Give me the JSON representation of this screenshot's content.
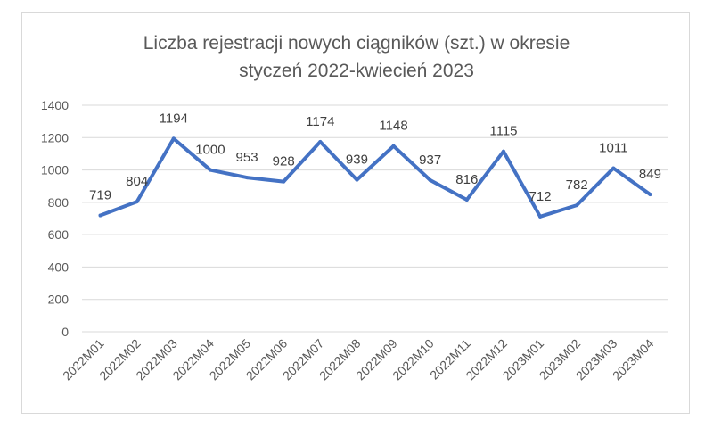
{
  "chart_data": {
    "type": "line",
    "title_lines": [
      "Liczba rejestracji nowych ciągników (szt.) w okresie",
      "styczeń 2022-kwiecień 2023"
    ],
    "categories": [
      "2022M01",
      "2022M02",
      "2022M03",
      "2022M04",
      "2022M05",
      "2022M06",
      "2022M07",
      "2022M08",
      "2022M09",
      "2022M10",
      "2022M11",
      "2022M12",
      "2023M01",
      "2023M02",
      "2023M03",
      "2023M04"
    ],
    "values": [
      719,
      804,
      1194,
      1000,
      953,
      928,
      1174,
      939,
      1148,
      937,
      816,
      1115,
      712,
      782,
      1011,
      849
    ],
    "yticks": [
      "0",
      "200",
      "400",
      "600",
      "800",
      "1000",
      "1200",
      "1400"
    ],
    "ylim": [
      0,
      1400
    ],
    "grid": true,
    "legend": "none",
    "line_color": "#4472c4"
  }
}
